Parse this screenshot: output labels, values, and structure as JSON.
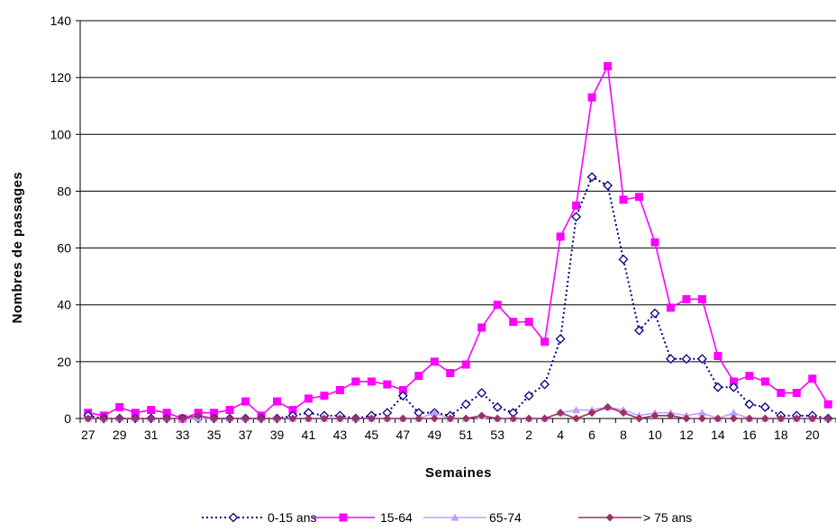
{
  "chart_data": {
    "type": "line",
    "title": "",
    "xlabel": "Semaines",
    "ylabel": "Nombres de passages",
    "ylim": [
      0,
      140
    ],
    "yticks": [
      "0",
      "20",
      "40",
      "60",
      "80",
      "100",
      "120",
      "140"
    ],
    "grid": true,
    "legend_position": "bottom",
    "categories": [
      "27",
      "28",
      "29",
      "30",
      "31",
      "32",
      "33",
      "34",
      "35",
      "36",
      "37",
      "38",
      "39",
      "40",
      "41",
      "42",
      "43",
      "44",
      "45",
      "46",
      "47",
      "48",
      "49",
      "50",
      "51",
      "52",
      "53",
      "1",
      "2",
      "3",
      "4",
      "5",
      "6",
      "7",
      "8",
      "9",
      "10",
      "11",
      "12",
      "13",
      "14",
      "15",
      "16",
      "17",
      "18",
      "19",
      "20",
      "21"
    ],
    "x_tick_labels": [
      "27",
      "29",
      "31",
      "33",
      "35",
      "37",
      "39",
      "41",
      "43",
      "45",
      "47",
      "49",
      "51",
      "53",
      "2",
      "4",
      "6",
      "8",
      "10",
      "12",
      "14",
      "16",
      "18",
      "20"
    ],
    "series": [
      {
        "name": "0-15 ans",
        "color": "#000080",
        "marker": "diamond-open",
        "line": "dotted",
        "values": [
          1,
          0,
          0,
          0,
          0,
          0,
          0,
          0,
          0,
          0,
          0,
          0,
          0,
          1,
          2,
          1,
          1,
          0,
          1,
          2,
          8,
          2,
          2,
          1,
          5,
          9,
          4,
          2,
          8,
          12,
          28,
          71,
          85,
          82,
          56,
          31,
          37,
          21,
          21,
          21,
          11,
          11,
          5,
          4,
          1,
          1,
          1,
          0
        ]
      },
      {
        "name": "15-64",
        "color": "#ff00ff",
        "marker": "square",
        "line": "solid",
        "values": [
          2,
          1,
          4,
          2,
          3,
          2,
          0,
          2,
          2,
          3,
          6,
          1,
          6,
          3,
          7,
          8,
          10,
          13,
          13,
          12,
          10,
          15,
          20,
          16,
          19,
          32,
          40,
          34,
          34,
          27,
          64,
          75,
          113,
          124,
          77,
          78,
          62,
          39,
          42,
          42,
          22,
          13,
          15,
          13,
          9,
          9,
          14,
          5
        ]
      },
      {
        "name": "65-74",
        "color": "#c0a0ff",
        "marker": "triangle",
        "line": "solid",
        "values": [
          0,
          0,
          0,
          0,
          0,
          0,
          0,
          0,
          0,
          0,
          0,
          0,
          0,
          0,
          0,
          0,
          0,
          0,
          0,
          0,
          0,
          0,
          2,
          0,
          0,
          1,
          0,
          0,
          0,
          0,
          2,
          3,
          3,
          4,
          3,
          1,
          2,
          2,
          1,
          2,
          0,
          2,
          0,
          0,
          0,
          0,
          0,
          0
        ]
      },
      {
        "name": "> 75 ans",
        "color": "#993366",
        "marker": "diamond",
        "line": "solid",
        "values": [
          0,
          0,
          0,
          0,
          0,
          0,
          0,
          1,
          0,
          0,
          0,
          0,
          0,
          0,
          0,
          0,
          0,
          0,
          0,
          0,
          0,
          0,
          0,
          0,
          0,
          1,
          0,
          0,
          0,
          0,
          2,
          0,
          2,
          4,
          2,
          0,
          1,
          1,
          0,
          0,
          0,
          0,
          0,
          0,
          0,
          0,
          0,
          0
        ]
      }
    ]
  }
}
